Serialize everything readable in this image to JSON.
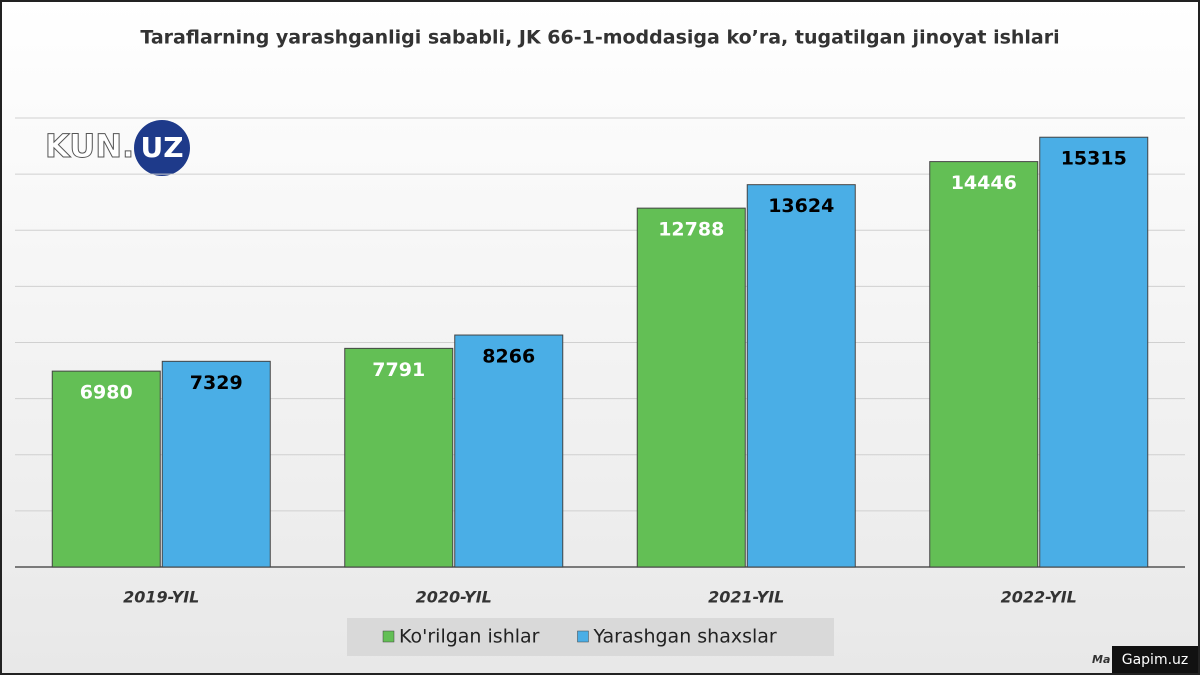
{
  "chart_data": {
    "type": "bar",
    "title": "Taraflarning yarashganligi sababli, JK 66-1-moddasiga ko’ra, tugatilgan jinoyat ishlari",
    "categories": [
      "2019-YIL",
      "2020-YIL",
      "2021-YIL",
      "2022-YIL"
    ],
    "series": [
      {
        "name": "Ko'rilgan ishlar",
        "color": "#63bf55",
        "label_color": "#ffffff",
        "values": [
          6980,
          7791,
          12788,
          14446
        ]
      },
      {
        "name": "Yarashgan shaxslar",
        "color": "#4aaee6",
        "label_color": "#000000",
        "values": [
          7329,
          8266,
          13624,
          15315
        ]
      }
    ],
    "ylim": [
      0,
      16000
    ],
    "yticks": [
      0,
      2000,
      4000,
      6000,
      8000,
      10000,
      12000,
      14000,
      16000
    ],
    "grid": true,
    "legend": "bottom"
  },
  "logo": {
    "left": "KUN.",
    "right": "UZ"
  },
  "source": "Ma",
  "watermark": "Gapim.uz"
}
